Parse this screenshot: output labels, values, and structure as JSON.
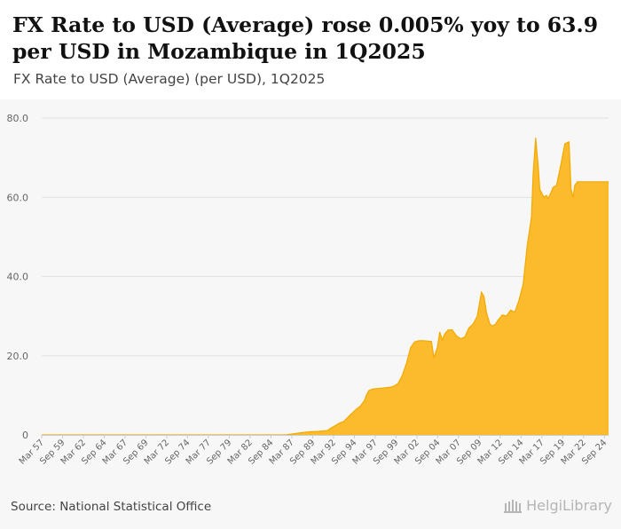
{
  "header": {
    "title": "FX Rate to USD (Average) rose 0.005% yoy to 63.9 per USD in Mozambique in 1Q2025",
    "subtitle": "FX Rate to USD (Average) (per USD), 1Q2025"
  },
  "footer": {
    "source": "Source: National Statistical Office",
    "brand": "HelgiLibrary"
  },
  "chart_data": {
    "type": "area",
    "color": "#fbbb2c",
    "edge_color": "#f2a900",
    "ylim": [
      0,
      80
    ],
    "y_ticks": [
      "0",
      "20.0",
      "40.0",
      "60.0",
      "80.0"
    ],
    "y_tick_values": [
      0,
      20,
      40,
      60,
      80
    ],
    "x_range": [
      1957.25,
      2025.25
    ],
    "x_tick_labels": [
      "Mar 57",
      "Sep 59",
      "Mar 62",
      "Sep 64",
      "Mar 67",
      "Sep 69",
      "Mar 72",
      "Sep 74",
      "Mar 77",
      "Sep 79",
      "Mar 82",
      "Sep 84",
      "Mar 87",
      "Sep 89",
      "Mar 92",
      "Sep 94",
      "Mar 97",
      "Sep 99",
      "Mar 02",
      "Sep 04",
      "Mar 07",
      "Sep 09",
      "Mar 12",
      "Sep 14",
      "Mar 17",
      "Sep 19",
      "Mar 22",
      "Sep 24"
    ],
    "x_tick_values": [
      1957.25,
      1959.75,
      1962.25,
      1964.75,
      1967.25,
      1969.75,
      1972.25,
      1974.75,
      1977.25,
      1979.75,
      1982.25,
      1984.75,
      1987.25,
      1989.75,
      1992.25,
      1994.75,
      1997.25,
      1999.75,
      2002.25,
      2004.75,
      2007.25,
      2009.75,
      2012.25,
      2014.75,
      2017.25,
      2019.75,
      2022.25,
      2024.75
    ],
    "series": [
      {
        "name": "FX Rate to USD (Average)",
        "x": [
          1957.25,
          1980.0,
          1985.0,
          1986.5,
          1987.5,
          1988.5,
          1989.5,
          1990.5,
          1991.5,
          1992.0,
          1992.6,
          1993.0,
          1993.5,
          1994.0,
          1994.5,
          1995.0,
          1995.5,
          1996.0,
          1996.2,
          1996.5,
          1997.0,
          1998.0,
          1999.0,
          1999.5,
          2000.0,
          2000.5,
          2001.0,
          2001.5,
          2002.0,
          2002.5,
          2003.0,
          2004.0,
          2004.3,
          2004.7,
          2005.0,
          2005.3,
          2005.6,
          2006.0,
          2006.5,
          2007.0,
          2007.5,
          2008.0,
          2008.5,
          2009.0,
          2009.5,
          2010.0,
          2010.3,
          2010.6,
          2011.0,
          2011.3,
          2011.7,
          2012.0,
          2012.5,
          2013.0,
          2013.5,
          2014.0,
          2014.5,
          2015.0,
          2015.5,
          2016.0,
          2016.2,
          2016.5,
          2016.8,
          2017.0,
          2017.25,
          2017.5,
          2017.8,
          2018.0,
          2018.3,
          2018.6,
          2019.0,
          2019.5,
          2020.0,
          2020.5,
          2020.75,
          2021.0,
          2021.2,
          2021.5,
          2022.0,
          2023.0,
          2024.0,
          2025.25
        ],
        "values": [
          0.0,
          0.0,
          0.0,
          0.0,
          0.3,
          0.6,
          0.8,
          0.9,
          1.1,
          1.8,
          2.5,
          3.0,
          3.4,
          4.5,
          5.5,
          6.5,
          7.3,
          8.8,
          10.0,
          11.2,
          11.6,
          11.8,
          12.0,
          12.3,
          13.0,
          15.0,
          18.0,
          22.0,
          23.5,
          23.8,
          23.8,
          23.6,
          19.5,
          22.0,
          26.0,
          24.0,
          25.5,
          26.5,
          26.5,
          25.0,
          24.3,
          24.7,
          27.0,
          28.0,
          30.0,
          36.0,
          35.0,
          31.0,
          28.0,
          27.5,
          28.0,
          29.0,
          30.3,
          30.0,
          31.5,
          31.0,
          34.0,
          38.0,
          48.0,
          55.0,
          66.0,
          75.0,
          68.0,
          62.0,
          61.0,
          60.0,
          60.5,
          59.7,
          61.0,
          62.5,
          63.0,
          68.0,
          73.5,
          74.0,
          62.0,
          60.0,
          63.0,
          63.9,
          63.9,
          63.9,
          63.9,
          63.9
        ]
      }
    ]
  }
}
